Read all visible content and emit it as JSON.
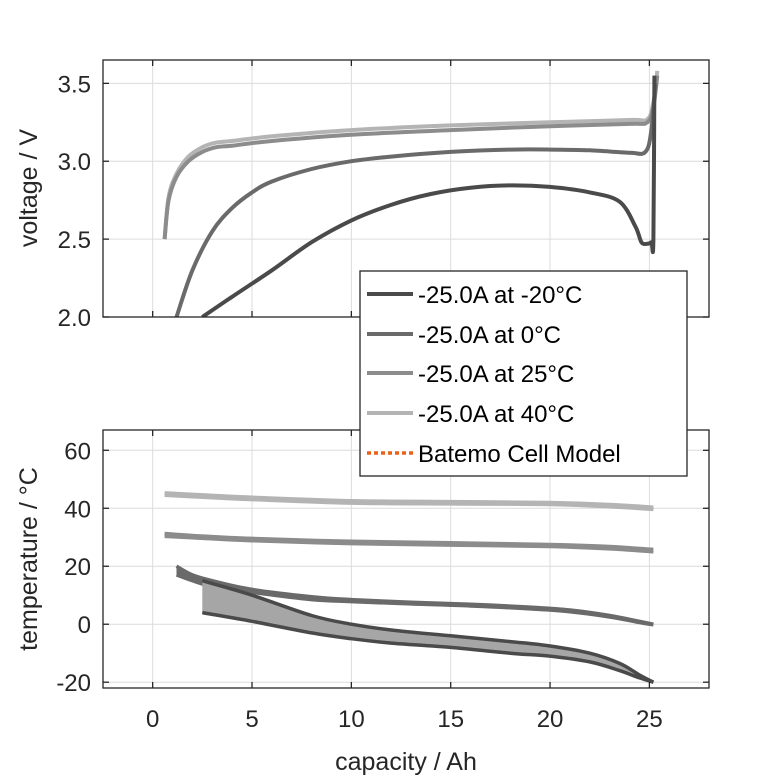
{
  "chart_data": [
    {
      "type": "line",
      "panel": "top",
      "title": "",
      "xlabel": "",
      "ylabel": "voltage / V",
      "xlim": [
        -2.5,
        28
      ],
      "ylim": [
        2.0,
        3.65
      ],
      "xticks": [
        0,
        5,
        10,
        15,
        20,
        25
      ],
      "yticks": [
        2.0,
        2.5,
        3.0,
        3.5
      ],
      "ytick_labels": [
        "2.0",
        "2.5",
        "3.0",
        "3.5"
      ],
      "grid": true,
      "series": [
        {
          "name": "-25.0A at -20°C",
          "color": "#4a4a4a",
          "x": [
            2.5,
            4,
            6,
            8,
            10,
            12,
            14,
            16,
            18,
            20,
            22,
            23.5,
            24.3,
            24.6,
            24.9,
            25.1,
            25.2,
            25.25
          ],
          "y": [
            2.0,
            2.13,
            2.3,
            2.48,
            2.62,
            2.72,
            2.79,
            2.83,
            2.845,
            2.835,
            2.8,
            2.74,
            2.58,
            2.48,
            2.47,
            2.48,
            2.5,
            3.55
          ]
        },
        {
          "name": "-25.0A at 0°C",
          "color": "#6a6a6a",
          "x": [
            1.2,
            2,
            3,
            4,
            5,
            6,
            8,
            10,
            12,
            15,
            18,
            20,
            22,
            24,
            24.8,
            25.1,
            25.3
          ],
          "y": [
            2.0,
            2.3,
            2.55,
            2.7,
            2.8,
            2.87,
            2.95,
            3.0,
            3.03,
            3.06,
            3.075,
            3.075,
            3.07,
            3.055,
            3.06,
            3.2,
            3.5
          ]
        },
        {
          "name": "-25.0A at 25°C",
          "color": "#8c8c8c",
          "x": [
            0.6,
            0.8,
            1.2,
            1.8,
            2.5,
            3.2,
            4,
            6,
            10,
            15,
            20,
            24,
            24.9,
            25.2,
            25.4
          ],
          "y": [
            2.5,
            2.75,
            2.9,
            3.0,
            3.06,
            3.09,
            3.1,
            3.13,
            3.17,
            3.2,
            3.225,
            3.24,
            3.25,
            3.35,
            3.55
          ]
        },
        {
          "name": "-25.0A at 40°C",
          "color": "#b4b4b4",
          "x": [
            0.6,
            0.8,
            1.2,
            1.8,
            2.5,
            3.2,
            4,
            6,
            10,
            15,
            20,
            24,
            24.9,
            25.2,
            25.4
          ],
          "y": [
            2.5,
            2.77,
            2.92,
            3.03,
            3.09,
            3.12,
            3.13,
            3.16,
            3.2,
            3.23,
            3.25,
            3.265,
            3.27,
            3.38,
            3.58
          ]
        }
      ],
      "legend": {
        "placement": "bottom-right",
        "entries": [
          {
            "label": "-25.0A at -20°C",
            "color": "#4a4a4a",
            "style": "solid"
          },
          {
            "label": "-25.0A at 0°C",
            "color": "#6a6a6a",
            "style": "solid"
          },
          {
            "label": "-25.0A at 25°C",
            "color": "#8c8c8c",
            "style": "solid"
          },
          {
            "label": "-25.0A at 40°C",
            "color": "#b4b4b4",
            "style": "solid"
          },
          {
            "label": "Batemo Cell Model",
            "color": "#e8601c",
            "style": "dotted"
          }
        ]
      }
    },
    {
      "type": "area",
      "panel": "bottom",
      "title": "",
      "xlabel": "capacity / Ah",
      "ylabel": "temperature / °C",
      "xlim": [
        -2.5,
        28
      ],
      "ylim": [
        -22,
        67
      ],
      "xticks": [
        0,
        5,
        10,
        15,
        20,
        25
      ],
      "xtick_labels": [
        "0",
        "5",
        "10",
        "15",
        "20",
        "25"
      ],
      "yticks": [
        -20,
        0,
        20,
        40,
        60
      ],
      "ytick_labels": [
        "-20",
        "0",
        "20",
        "40",
        "60"
      ],
      "grid": true,
      "series": [
        {
          "name": "-25.0A at -20°C",
          "color": "#4a4a4a",
          "x": [
            2.5,
            5,
            8,
            10,
            12,
            15,
            18,
            20,
            22,
            23.5,
            24.5,
            25.2
          ],
          "lower": [
            4,
            1,
            -3,
            -5,
            -6.5,
            -8,
            -10,
            -11,
            -13,
            -16,
            -18.5,
            -20
          ],
          "upper": [
            15,
            10,
            3,
            0,
            -2,
            -4,
            -6,
            -7.5,
            -10,
            -13.5,
            -17.5,
            -20
          ]
        },
        {
          "name": "-25.0A at 0°C",
          "color": "#6a6a6a",
          "x": [
            1.2,
            2,
            3,
            5,
            8,
            10,
            13,
            16,
            19,
            21,
            23,
            24.5,
            25.2
          ],
          "lower": [
            17,
            15,
            13,
            11,
            8.5,
            7.8,
            7,
            6.3,
            5.3,
            4.3,
            2.5,
            0.6,
            -0.2
          ],
          "upper": [
            20,
            17,
            15,
            12,
            9.5,
            8.5,
            7.6,
            6.9,
            5.9,
            4.9,
            3,
            1,
            0
          ]
        },
        {
          "name": "-25.0A at 25°C",
          "color": "#8c8c8c",
          "x": [
            0.6,
            2,
            5,
            10,
            15,
            20,
            23,
            25.2
          ],
          "lower": [
            30.3,
            29.8,
            28.8,
            27.8,
            27.3,
            26.8,
            26,
            25
          ],
          "upper": [
            31.3,
            30.6,
            29.6,
            28.6,
            28.1,
            27.5,
            26.8,
            25.8
          ]
        },
        {
          "name": "-25.0A at 40°C",
          "color": "#b4b4b4",
          "x": [
            0.6,
            2,
            5,
            10,
            15,
            20,
            23,
            25.2
          ],
          "lower": [
            44.5,
            44,
            43,
            41.8,
            41.5,
            41.3,
            40.5,
            39.6
          ],
          "upper": [
            45.3,
            44.8,
            43.8,
            42.6,
            42.3,
            42,
            41.3,
            40.4
          ]
        }
      ]
    }
  ]
}
